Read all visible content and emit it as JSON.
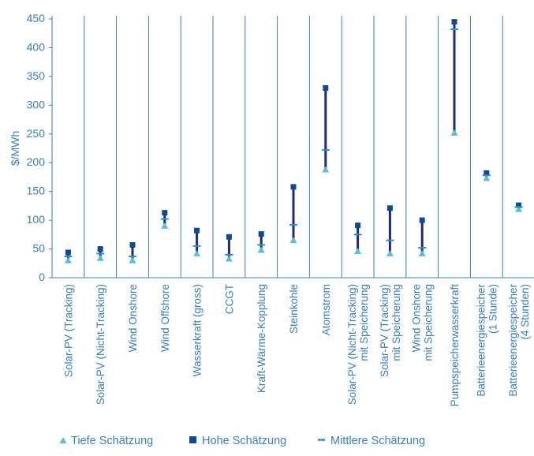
{
  "chart_data": {
    "type": "range",
    "ylabel": "$/MWh",
    "ylim": [
      0,
      450
    ],
    "yticks": [
      0,
      50,
      100,
      150,
      200,
      250,
      300,
      350,
      400,
      450
    ],
    "grid": "vertical-category-lines",
    "categories": [
      [
        "Solar-PV (Tracking)"
      ],
      [
        "Solar-PV (Nicht-Tracking)"
      ],
      [
        "Wind Onshore"
      ],
      [
        "Wind Offshore"
      ],
      [
        "Wasserkraft (gross)"
      ],
      [
        "CCGT"
      ],
      [
        "Kraft-Wärme-Kopplung"
      ],
      [
        "Steinkohle"
      ],
      [
        "Atomstrom"
      ],
      [
        "Solar-PV (Nicht-Tracking)",
        "mit Speicherung"
      ],
      [
        "Solar-PV (Tracking)",
        "mit Speicherung"
      ],
      [
        "Wind Onshore",
        "mit Speicherung"
      ],
      [
        "Pumpspeicherwasserkraft"
      ],
      [
        "Batterieenergiespeicher",
        "(1 Stunde)"
      ],
      [
        "Batterieenergiespeicher",
        "(4 Stunden)"
      ]
    ],
    "series": [
      {
        "name": "Tiefe Schätzung",
        "values": [
          30,
          34,
          30,
          90,
          42,
          33,
          48,
          65,
          188,
          46,
          42,
          42,
          252,
          173,
          119
        ]
      },
      {
        "name": "Hohe Schätzung",
        "values": [
          44,
          50,
          57,
          113,
          82,
          71,
          76,
          158,
          330,
          91,
          121,
          100,
          445,
          182,
          126
        ]
      },
      {
        "name": "Mittlere Schätzung",
        "values": [
          37,
          42,
          37,
          102,
          55,
          40,
          57,
          92,
          222,
          75,
          65,
          52,
          432,
          178,
          123
        ]
      }
    ],
    "legend_position": "bottom",
    "colors": {
      "low": "#5bbfcf",
      "high": "#0d4a94",
      "mid": "#2b8fd6",
      "range_line": "#1e2a78",
      "axis_text": "#3a7fc1",
      "grid": "#3a7fc1"
    }
  }
}
